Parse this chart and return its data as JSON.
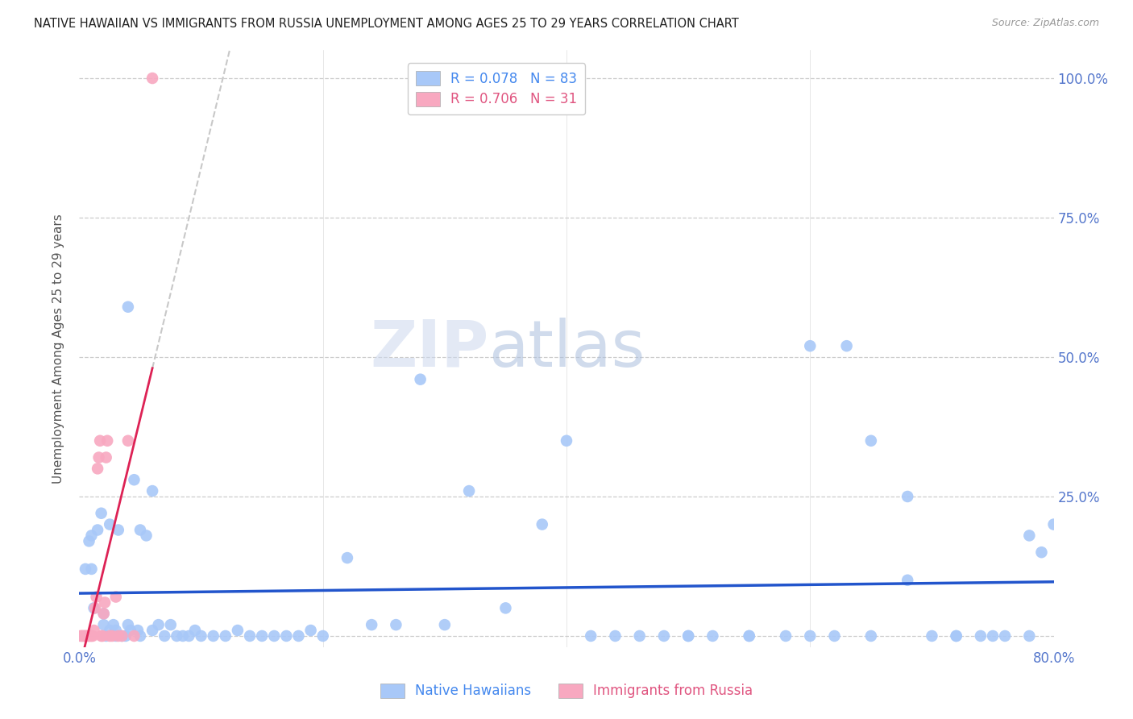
{
  "title": "NATIVE HAWAIIAN VS IMMIGRANTS FROM RUSSIA UNEMPLOYMENT AMONG AGES 25 TO 29 YEARS CORRELATION CHART",
  "source": "Source: ZipAtlas.com",
  "ylabel": "Unemployment Among Ages 25 to 29 years",
  "xlim": [
    0.0,
    0.8
  ],
  "ylim": [
    -0.02,
    1.05
  ],
  "plot_ylim": [
    0.0,
    1.0
  ],
  "xticks": [
    0.0,
    0.2,
    0.4,
    0.6,
    0.8
  ],
  "yticks": [
    0.0,
    0.25,
    0.5,
    0.75,
    1.0
  ],
  "xticklabels": [
    "0.0%",
    "",
    "",
    "",
    "80.0%"
  ],
  "right_yticklabels": [
    "",
    "25.0%",
    "50.0%",
    "75.0%",
    "100.0%"
  ],
  "blue_color": "#a8c8f8",
  "pink_color": "#f8a8c0",
  "blue_line_color": "#2255cc",
  "pink_line_color": "#dd2255",
  "dash_color": "#c8c8c8",
  "legend_blue_label": "R = 0.078   N = 83",
  "legend_pink_label": "R = 0.706   N = 31",
  "bottom_legend_blue": "Native Hawaiians",
  "bottom_legend_pink": "Immigrants from Russia",
  "watermark_zip": "ZIP",
  "watermark_atlas": "atlas",
  "blue_scatter_x": [
    0.005,
    0.008,
    0.01,
    0.01,
    0.012,
    0.015,
    0.018,
    0.02,
    0.02,
    0.022,
    0.025,
    0.025,
    0.028,
    0.03,
    0.03,
    0.032,
    0.035,
    0.038,
    0.04,
    0.04,
    0.042,
    0.045,
    0.048,
    0.05,
    0.05,
    0.055,
    0.06,
    0.06,
    0.065,
    0.07,
    0.075,
    0.08,
    0.085,
    0.09,
    0.095,
    0.1,
    0.11,
    0.12,
    0.13,
    0.14,
    0.15,
    0.16,
    0.17,
    0.18,
    0.19,
    0.2,
    0.22,
    0.24,
    0.26,
    0.28,
    0.3,
    0.32,
    0.35,
    0.38,
    0.4,
    0.42,
    0.44,
    0.46,
    0.48,
    0.5,
    0.52,
    0.55,
    0.58,
    0.6,
    0.63,
    0.65,
    0.68,
    0.7,
    0.72,
    0.74,
    0.76,
    0.78,
    0.79,
    0.8,
    0.65,
    0.68,
    0.72,
    0.75,
    0.78,
    0.5,
    0.55,
    0.6,
    0.62
  ],
  "blue_scatter_y": [
    0.12,
    0.17,
    0.18,
    0.12,
    0.05,
    0.19,
    0.22,
    0.04,
    0.02,
    0.0,
    0.01,
    0.2,
    0.02,
    0.0,
    0.01,
    0.19,
    0.0,
    0.0,
    0.02,
    0.59,
    0.01,
    0.28,
    0.01,
    0.19,
    0.0,
    0.18,
    0.01,
    0.26,
    0.02,
    0.0,
    0.02,
    0.0,
    0.0,
    0.0,
    0.01,
    0.0,
    0.0,
    0.0,
    0.01,
    0.0,
    0.0,
    0.0,
    0.0,
    0.0,
    0.01,
    0.0,
    0.14,
    0.02,
    0.02,
    0.46,
    0.02,
    0.26,
    0.05,
    0.2,
    0.35,
    0.0,
    0.0,
    0.0,
    0.0,
    0.0,
    0.0,
    0.0,
    0.0,
    0.52,
    0.52,
    0.0,
    0.25,
    0.0,
    0.0,
    0.0,
    0.0,
    0.18,
    0.15,
    0.2,
    0.35,
    0.1,
    0.0,
    0.0,
    0.0,
    0.0,
    0.0,
    0.0,
    0.0
  ],
  "pink_scatter_x": [
    0.001,
    0.002,
    0.003,
    0.004,
    0.005,
    0.006,
    0.007,
    0.008,
    0.009,
    0.01,
    0.011,
    0.012,
    0.013,
    0.014,
    0.015,
    0.016,
    0.017,
    0.018,
    0.019,
    0.02,
    0.021,
    0.022,
    0.023,
    0.025,
    0.027,
    0.03,
    0.032,
    0.035,
    0.04,
    0.045,
    0.06
  ],
  "pink_scatter_y": [
    0.0,
    0.0,
    0.0,
    0.0,
    0.0,
    0.0,
    0.0,
    0.0,
    0.0,
    0.0,
    0.0,
    0.01,
    0.05,
    0.07,
    0.3,
    0.32,
    0.35,
    0.0,
    0.0,
    0.04,
    0.06,
    0.32,
    0.35,
    0.0,
    0.0,
    0.07,
    0.0,
    0.0,
    0.35,
    0.0,
    1.0
  ]
}
